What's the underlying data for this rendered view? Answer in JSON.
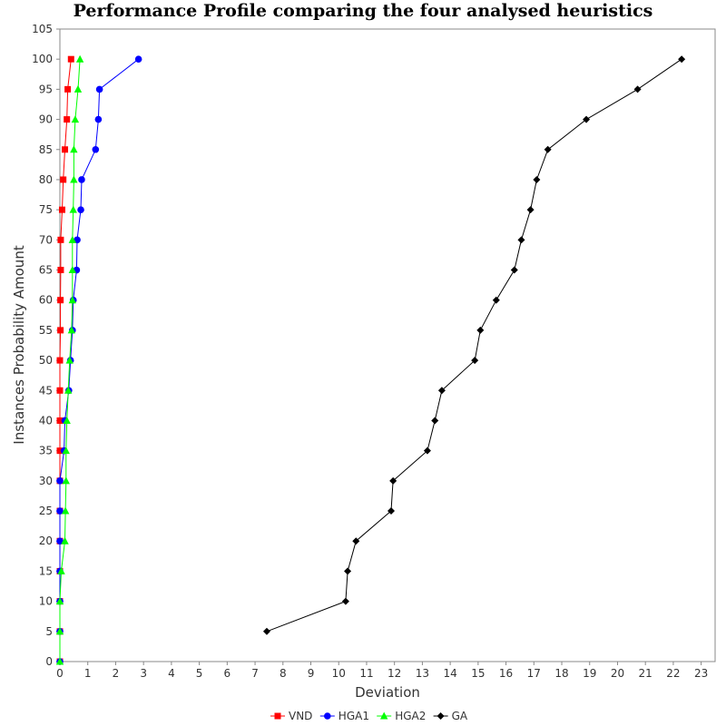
{
  "chart_data": {
    "type": "line",
    "title": "Performance Profile comparing the four analysed heuristics",
    "xlabel": "Deviation",
    "ylabel": "Instances Probability Amount",
    "xlim": [
      0,
      23.5
    ],
    "ylim": [
      0,
      105
    ],
    "xticks": [
      0,
      1,
      2,
      3,
      4,
      5,
      6,
      7,
      8,
      9,
      10,
      11,
      12,
      13,
      14,
      15,
      16,
      17,
      18,
      19,
      20,
      21,
      22,
      23
    ],
    "yticks": [
      0,
      5,
      10,
      15,
      20,
      25,
      30,
      35,
      40,
      45,
      50,
      55,
      60,
      65,
      70,
      75,
      80,
      85,
      90,
      95,
      100,
      105
    ],
    "grid": false,
    "legend_position": "bottom",
    "series": [
      {
        "name": "VND",
        "color": "#ff0000",
        "marker": "square",
        "x": [
          0.0,
          0.0,
          0.0,
          0.0,
          0.0,
          0.0,
          0.0,
          0.0,
          0.0,
          0.0,
          0.0,
          0.02,
          0.02,
          0.03,
          0.03,
          0.08,
          0.12,
          0.18,
          0.25,
          0.28,
          0.4
        ],
        "y": [
          0,
          5,
          10,
          15,
          20,
          25,
          30,
          35,
          40,
          45,
          50,
          55,
          60,
          65,
          70,
          75,
          80,
          85,
          90,
          95,
          100
        ]
      },
      {
        "name": "HGA1",
        "color": "#0000ff",
        "marker": "circle",
        "x": [
          0.0,
          0.0,
          0.0,
          0.0,
          0.0,
          0.0,
          0.0,
          0.15,
          0.18,
          0.32,
          0.38,
          0.45,
          0.48,
          0.6,
          0.62,
          0.75,
          0.78,
          1.28,
          1.38,
          1.42,
          2.82
        ],
        "y": [
          0,
          5,
          10,
          15,
          20,
          25,
          30,
          35,
          40,
          45,
          50,
          55,
          60,
          65,
          70,
          75,
          80,
          85,
          90,
          95,
          100
        ]
      },
      {
        "name": "HGA2",
        "color": "#00ff00",
        "marker": "triangle",
        "x": [
          0.0,
          0.0,
          0.0,
          0.05,
          0.18,
          0.2,
          0.22,
          0.22,
          0.25,
          0.3,
          0.35,
          0.42,
          0.45,
          0.45,
          0.45,
          0.48,
          0.5,
          0.5,
          0.55,
          0.65,
          0.72
        ],
        "y": [
          0,
          5,
          10,
          15,
          20,
          25,
          30,
          35,
          40,
          45,
          50,
          55,
          60,
          65,
          70,
          75,
          80,
          85,
          90,
          95,
          100
        ]
      },
      {
        "name": "GA",
        "color": "#000000",
        "marker": "diamond",
        "x": [
          7.42,
          10.25,
          10.32,
          10.62,
          11.88,
          11.95,
          13.18,
          13.45,
          13.7,
          14.88,
          15.08,
          15.65,
          16.3,
          16.55,
          16.88,
          17.1,
          17.5,
          18.88,
          20.72,
          22.3
        ],
        "y": [
          5,
          10,
          15,
          20,
          25,
          30,
          35,
          40,
          45,
          50,
          55,
          60,
          65,
          70,
          75,
          80,
          85,
          90,
          95,
          100
        ]
      }
    ]
  }
}
